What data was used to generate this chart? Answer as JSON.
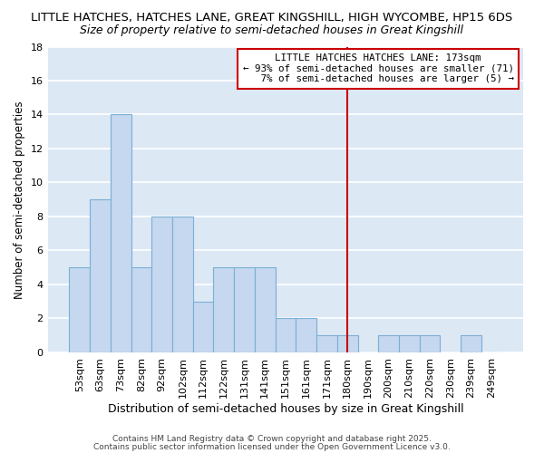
{
  "title1": "LITTLE HATCHES, HATCHES LANE, GREAT KINGSHILL, HIGH WYCOMBE, HP15 6DS",
  "title2": "Size of property relative to semi-detached houses in Great Kingshill",
  "xlabel": "Distribution of semi-detached houses by size in Great Kingshill",
  "ylabel": "Number of semi-detached properties",
  "categories": [
    "53sqm",
    "63sqm",
    "73sqm",
    "82sqm",
    "92sqm",
    "102sqm",
    "112sqm",
    "122sqm",
    "131sqm",
    "141sqm",
    "151sqm",
    "161sqm",
    "171sqm",
    "180sqm",
    "190sqm",
    "200sqm",
    "210sqm",
    "220sqm",
    "230sqm",
    "239sqm",
    "249sqm"
  ],
  "values": [
    5,
    9,
    14,
    5,
    8,
    8,
    3,
    5,
    5,
    5,
    2,
    2,
    1,
    1,
    0,
    1,
    1,
    1,
    0,
    1,
    0
  ],
  "bar_color": "#c5d8ef",
  "bar_edge_color": "#7bafd4",
  "vline_x": 13.0,
  "vline_color": "#cc0000",
  "annotation_line1": "LITTLE HATCHES HATCHES LANE: 173sqm",
  "annotation_line2": "← 93% of semi-detached houses are smaller (71)",
  "annotation_line3": "   7% of semi-detached houses are larger (5) →",
  "annotation_box_color": "#ffffff",
  "annotation_box_edge": "#cc0000",
  "ylim": [
    0,
    18
  ],
  "yticks": [
    0,
    2,
    4,
    6,
    8,
    10,
    12,
    14,
    16,
    18
  ],
  "plot_bg_color": "#dde8f5",
  "fig_bg_color": "#ffffff",
  "grid_color": "#ffffff",
  "footer1": "Contains HM Land Registry data © Crown copyright and database right 2025.",
  "footer2": "Contains public sector information licensed under the Open Government Licence v3.0.",
  "title1_fontsize": 9.5,
  "title2_fontsize": 9.0,
  "xlabel_fontsize": 9.0,
  "ylabel_fontsize": 8.5,
  "tick_fontsize": 8.0,
  "annotation_fontsize": 7.8,
  "footer_fontsize": 6.5
}
